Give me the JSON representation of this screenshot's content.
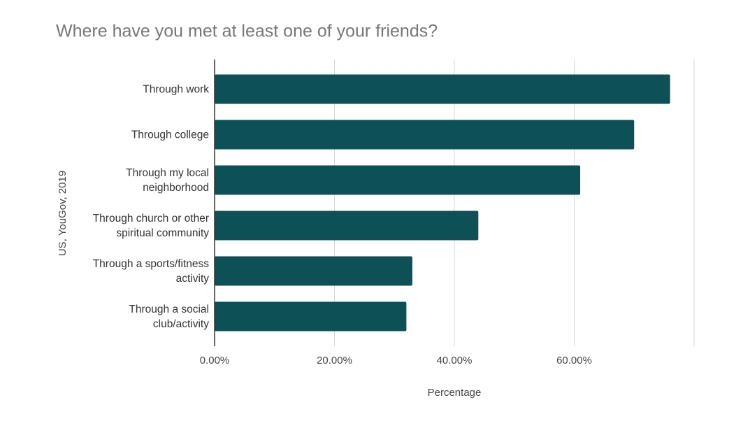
{
  "chart_data": {
    "type": "bar",
    "orientation": "horizontal",
    "title": "Where have you met at least one of your friends?",
    "x_label": "Percentage",
    "y_label": "US, YouGov, 2019",
    "categories": [
      "Through work",
      "Through college",
      "Through my local neighborhood",
      "Through church or other spiritual community",
      "Through a sports/fitness activity",
      "Through a social club/activity"
    ],
    "values": [
      76,
      70,
      61,
      44,
      33,
      32
    ],
    "color": "#0d5055",
    "xlim": [
      0,
      80
    ],
    "xticks": [
      {
        "value": 0,
        "label": "0.00%"
      },
      {
        "value": 20,
        "label": "20.00%"
      },
      {
        "value": 40,
        "label": "40.00%"
      },
      {
        "value": 60,
        "label": "60.00%"
      }
    ],
    "grid": true
  }
}
